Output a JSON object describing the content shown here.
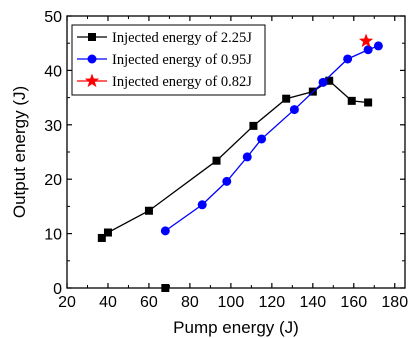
{
  "chart_data": {
    "type": "line",
    "xlabel": "Pump energy (J)",
    "ylabel": "Output energy (J)",
    "xlim": [
      20,
      185
    ],
    "ylim": [
      0,
      50
    ],
    "x_ticks": [
      20,
      40,
      60,
      80,
      100,
      120,
      140,
      160,
      180
    ],
    "y_ticks": [
      0,
      10,
      20,
      30,
      40,
      50
    ],
    "grid": false,
    "legend_position": "top-left",
    "series": [
      {
        "name": "Injected energy of 2.25J",
        "color": "#000000",
        "marker": "square",
        "x": [
          37,
          40,
          60,
          93,
          111,
          127,
          140,
          148,
          159,
          167
        ],
        "y": [
          9.2,
          10.2,
          14.2,
          23.4,
          29.8,
          34.8,
          36.1,
          38.1,
          34.4,
          34.1
        ]
      },
      {
        "name": "Injected energy of 0.95J",
        "color": "#0000ff",
        "marker": "circle",
        "x": [
          68,
          86,
          98,
          108,
          115,
          131,
          145,
          157,
          167,
          172
        ],
        "y": [
          10.5,
          15.3,
          19.6,
          24.1,
          27.4,
          32.8,
          37.8,
          42.1,
          43.8,
          44.5
        ]
      },
      {
        "name": "Injected energy of 0.82J",
        "color": "#ff0000",
        "marker": "star",
        "x": [
          166
        ],
        "y": [
          45.4
        ]
      }
    ],
    "extra_points": [
      {
        "x": 68,
        "y": 0,
        "marker": "square",
        "color": "#000000"
      }
    ]
  }
}
